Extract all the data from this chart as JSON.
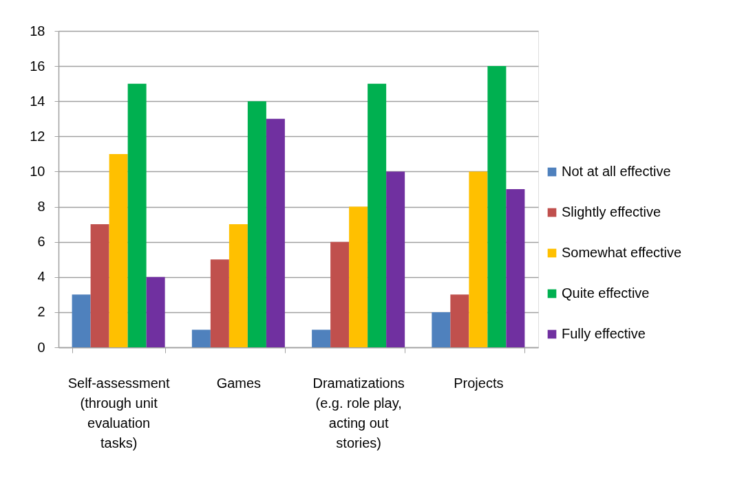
{
  "chart_data": {
    "type": "bar",
    "categories": [
      "Self-assessment (through unit evaluation tasks)",
      "Games",
      "Dramatizations (e.g. role play, acting out stories)",
      "Projects"
    ],
    "series": [
      {
        "name": "Not at all effective",
        "color": "#4f81bd",
        "values": [
          3,
          1,
          1,
          2
        ]
      },
      {
        "name": "Slightly effective",
        "color": "#c0504d",
        "values": [
          7,
          5,
          6,
          3
        ]
      },
      {
        "name": "Somewhat effective",
        "color": "#ffc000",
        "values": [
          11,
          7,
          8,
          10
        ]
      },
      {
        "name": "Quite effective",
        "color": "#00b050",
        "values": [
          15,
          14,
          15,
          16
        ]
      },
      {
        "name": "Fully effective",
        "color": "#7030a0",
        "values": [
          4,
          13,
          10,
          9
        ]
      }
    ],
    "ylim": [
      0,
      18
    ],
    "yticks": [
      0,
      2,
      4,
      6,
      8,
      10,
      12,
      14,
      16,
      18
    ],
    "grid": true,
    "legend": "right"
  }
}
